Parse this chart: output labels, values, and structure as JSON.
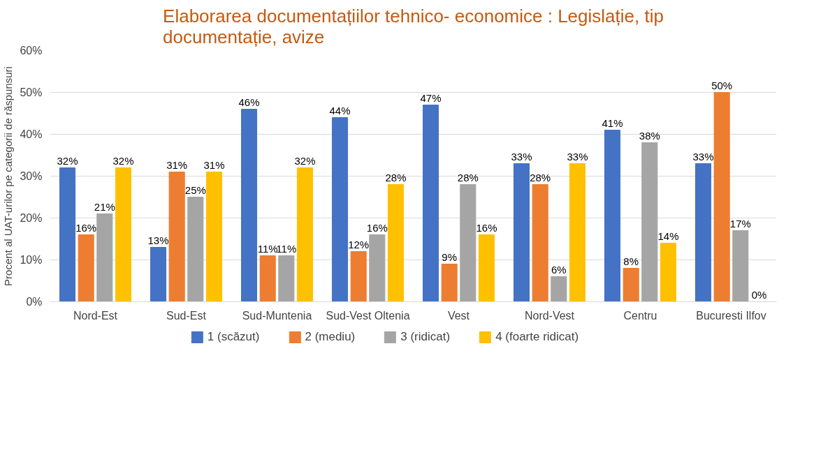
{
  "chart_data": {
    "type": "bar",
    "title": "Elaborarea documentațiilor tehnico- economice : Legislație, tip documentație, avize",
    "ylabel": "Procent al UAT-urilor pe categorii de răspunsuri",
    "categories": [
      "Nord-Est",
      "Sud-Est",
      "Sud-Muntenia",
      "Sud-Vest Oltenia",
      "Vest",
      "Nord-Vest",
      "Centru",
      "Bucuresti Ilfov"
    ],
    "series": [
      {
        "name": "1 (scăzut)",
        "color": "#4472c4",
        "values": [
          32,
          13,
          46,
          44,
          47,
          33,
          41,
          33
        ],
        "value_labels": [
          "32%",
          "13%",
          "46%",
          "44%",
          "47%",
          "33%",
          "41%",
          "33%"
        ]
      },
      {
        "name": "2 (mediu)",
        "color": "#ed7d31",
        "values": [
          16,
          31,
          11,
          12,
          9,
          28,
          8,
          50
        ],
        "value_labels": [
          "16%",
          "31%",
          "11%",
          "12%",
          "9%",
          "28%",
          "8%",
          "50%"
        ]
      },
      {
        "name": "3 (ridicat)",
        "color": "#a5a5a5",
        "values": [
          21,
          25,
          11,
          16,
          28,
          6,
          38,
          17
        ],
        "value_labels": [
          "21%",
          "25%",
          "11%",
          "16%",
          "28%",
          "6%",
          "38%",
          "17%"
        ]
      },
      {
        "name": "4 (foarte ridicat)",
        "color": "#ffc000",
        "values": [
          32,
          31,
          32,
          28,
          16,
          33,
          14,
          0
        ],
        "value_labels": [
          "32%",
          "31%",
          "32%",
          "28%",
          "16%",
          "33%",
          "14%",
          "0%"
        ]
      }
    ],
    "ylim": [
      0,
      60
    ],
    "yticks": [
      {
        "value": 0,
        "label": "0%"
      },
      {
        "value": 10,
        "label": "10%"
      },
      {
        "value": 20,
        "label": "20%"
      },
      {
        "value": 30,
        "label": "30%"
      },
      {
        "value": 40,
        "label": "40%"
      },
      {
        "value": 50,
        "label": "50%"
      },
      {
        "value": 60,
        "label": "60%"
      }
    ],
    "grid": "y",
    "legend": "bottom"
  }
}
